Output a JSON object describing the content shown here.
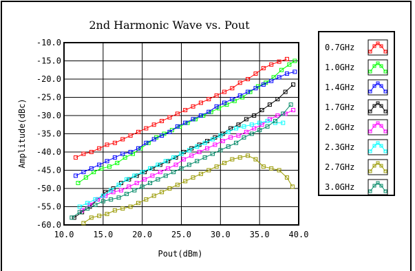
{
  "chart_data": {
    "type": "line",
    "title": "2nd Harmonic Wave vs. Pout",
    "xlabel": "Pout(dBm)",
    "ylabel": "Amplitude(dBc)",
    "xlim": [
      10.0,
      40.0
    ],
    "ylim": [
      -60.0,
      -10.0
    ],
    "xticks": [
      "10.0",
      "15.0",
      "20.0",
      "25.0",
      "30.0",
      "35.0",
      "40.0"
    ],
    "yticks": [
      "-10.0",
      "-15.0",
      "-20.0",
      "-25.0",
      "-30.0",
      "-35.0",
      "-40.0",
      "-45.0",
      "-50.0",
      "-55.0",
      "-60.0"
    ],
    "grid": true,
    "legend_position": "right",
    "series": [
      {
        "name": "0.7GHz",
        "color": "#ff0000",
        "x": [
          11.5,
          12.5,
          13.5,
          14.5,
          15.5,
          16.5,
          17.5,
          18.5,
          19.5,
          20.5,
          21.5,
          22.5,
          23.5,
          24.5,
          25.5,
          26.5,
          27.5,
          28.5,
          29.5,
          30.5,
          31.5,
          32.5,
          33.5,
          34.5,
          35.5,
          36.5,
          37.5,
          38.5
        ],
        "y": [
          -41.5,
          -40.5,
          -40,
          -39,
          -38,
          -37.5,
          -36.5,
          -35.5,
          -34.5,
          -33.5,
          -32.5,
          -31.5,
          -30.5,
          -29.5,
          -28.5,
          -27.5,
          -26.5,
          -25.5,
          -24.5,
          -23.5,
          -22.5,
          -21,
          -20,
          -18.5,
          -17,
          -16,
          -15.2,
          -14.5
        ]
      },
      {
        "name": "1.0GHz",
        "color": "#00ff00",
        "x": [
          11.8,
          12.8,
          13.8,
          14.8,
          15.8,
          16.8,
          17.8,
          18.8,
          19.8,
          20.8,
          21.8,
          22.8,
          23.8,
          24.8,
          25.8,
          26.8,
          27.8,
          28.8,
          29.8,
          30.8,
          31.8,
          32.8,
          33.8,
          34.8,
          35.8,
          36.8,
          37.8,
          38.8,
          39.5
        ],
        "y": [
          -48.5,
          -47,
          -45.5,
          -44.5,
          -44,
          -43,
          -41.5,
          -40.5,
          -39,
          -37.5,
          -36,
          -35,
          -34,
          -33,
          -32,
          -31,
          -30,
          -29,
          -28,
          -27,
          -26,
          -25,
          -23.5,
          -22,
          -21,
          -19.5,
          -17.5,
          -16,
          -15
        ]
      },
      {
        "name": "1.4GHz",
        "color": "#0000ff",
        "x": [
          11.5,
          12.5,
          13.5,
          14.5,
          15.5,
          16.5,
          17.5,
          18.5,
          19.5,
          20.5,
          21.5,
          22.5,
          23.5,
          24.5,
          25.5,
          26.5,
          27.5,
          28.5,
          29.5,
          30.5,
          31.5,
          32.5,
          33.5,
          34.5,
          35.5,
          36.5,
          37.5,
          38.5,
          39.5
        ],
        "y": [
          -46.5,
          -45.5,
          -44.5,
          -43.5,
          -42.5,
          -41.5,
          -40.5,
          -40,
          -39,
          -37.5,
          -36.5,
          -35.5,
          -34.5,
          -33,
          -32,
          -31,
          -30,
          -29,
          -27.5,
          -26.5,
          -25.5,
          -24.5,
          -23.5,
          -22.5,
          -21.5,
          -20.5,
          -19.5,
          -18.5,
          -18
        ]
      },
      {
        "name": "1.7GHz",
        "color": "#000000",
        "x": [
          11.3,
          12.3,
          13.3,
          14.3,
          15.3,
          16.3,
          17.3,
          18.3,
          19.3,
          20.3,
          21.3,
          22.3,
          23.3,
          24.3,
          25.3,
          26.3,
          27.3,
          28.3,
          29.3,
          30.3,
          31.3,
          32.3,
          33.3,
          34.3,
          35.3,
          36.3,
          37.3,
          38.3,
          39.3
        ],
        "y": [
          -58,
          -56.5,
          -55,
          -53,
          -51,
          -50,
          -48.5,
          -47.5,
          -46.5,
          -45.5,
          -44.5,
          -43.5,
          -42.5,
          -41.5,
          -40,
          -39,
          -38,
          -37,
          -36,
          -35,
          -33.5,
          -32.5,
          -31,
          -30,
          -28.5,
          -27,
          -25.5,
          -23.5,
          -21.5
        ]
      },
      {
        "name": "2.0GHz",
        "color": "#ff00ff",
        "x": [
          12.3,
          13.3,
          14.3,
          15.3,
          16.3,
          17.3,
          18.3,
          19.3,
          20.3,
          21.3,
          22.3,
          23.3,
          24.3,
          25.3,
          26.3,
          27.3,
          28.3,
          29.3,
          30.3,
          31.3,
          32.3,
          33.3,
          34.3,
          35.3,
          36.3,
          37.3,
          38.3,
          39.3
        ],
        "y": [
          -56,
          -54.5,
          -53,
          -52,
          -51,
          -50.5,
          -49.5,
          -48.5,
          -47.5,
          -46.5,
          -45.5,
          -44.5,
          -43.5,
          -42,
          -41,
          -40,
          -39,
          -38,
          -37,
          -36,
          -35.5,
          -34.5,
          -33.5,
          -32.5,
          -31,
          -30,
          -29.5,
          -28.5
        ]
      },
      {
        "name": "2.3GHz",
        "color": "#00ffff",
        "x": [
          12,
          13,
          14,
          15,
          16,
          17,
          18,
          19,
          20,
          21,
          22,
          23,
          24,
          25,
          26,
          27,
          28,
          29,
          30,
          31,
          32,
          33,
          34,
          35,
          36,
          37,
          38
        ],
        "y": [
          -55,
          -54,
          -53,
          -52,
          -50.5,
          -49,
          -47.5,
          -46.5,
          -45.5,
          -44.5,
          -43.5,
          -42.5,
          -41.5,
          -40.5,
          -39.5,
          -38.5,
          -37.5,
          -36.5,
          -35.5,
          -34.5,
          -33.5,
          -33,
          -32.5,
          -32,
          -31.5,
          -32,
          -32
        ]
      },
      {
        "name": "2.7GHz",
        "color": "#999900",
        "x": [
          12.5,
          13.5,
          14.5,
          15.5,
          16.5,
          17.5,
          18.5,
          19.5,
          20.5,
          21.5,
          22.5,
          23.5,
          24.5,
          25.5,
          26.5,
          27.5,
          28.5,
          29.5,
          30.5,
          31.5,
          32.5,
          33.5,
          34.5,
          35.5,
          36.5,
          37.5,
          38.5,
          39.2
        ],
        "y": [
          -59.5,
          -58,
          -57.5,
          -57,
          -56,
          -55.5,
          -55,
          -54,
          -53,
          -52,
          -51,
          -50,
          -49,
          -48,
          -47,
          -46,
          -45,
          -44,
          -43,
          -42,
          -41.5,
          -41,
          -42,
          -44,
          -44.5,
          -45,
          -47,
          -49.5
        ]
      },
      {
        "name": "3.0GHz",
        "color": "#008866",
        "x": [
          11,
          12,
          13,
          14,
          15,
          16,
          17,
          18,
          19,
          20,
          21,
          22,
          23,
          24,
          25,
          26,
          27,
          28,
          29,
          30,
          31,
          32,
          33,
          34,
          35,
          36,
          37,
          38,
          39
        ],
        "y": [
          -58,
          -56.5,
          -55.5,
          -54.5,
          -53.5,
          -53,
          -52.5,
          -51.5,
          -50.5,
          -49.5,
          -48.5,
          -47.5,
          -46.5,
          -45.5,
          -44.5,
          -43.5,
          -42.5,
          -41.5,
          -40.5,
          -39.5,
          -38.5,
          -37.5,
          -36,
          -35,
          -34,
          -33,
          -31.5,
          -29.5,
          -27
        ]
      }
    ]
  }
}
